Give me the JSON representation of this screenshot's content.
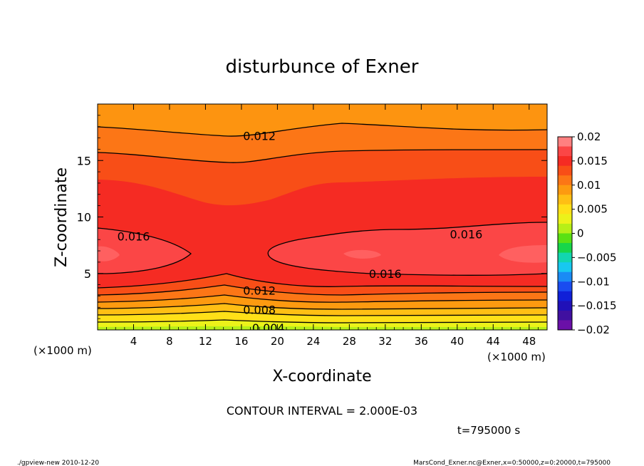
{
  "chart_data": {
    "type": "heatmap",
    "title": "disturbunce of Exner",
    "xlabel": "X-coordinate",
    "ylabel": "Z-coordinate",
    "x_unit": "(×1000 m)",
    "y_unit": "(×1000 m)",
    "xlim": [
      0,
      50
    ],
    "ylim": [
      0,
      20
    ],
    "x_ticks": [
      4,
      8,
      12,
      16,
      20,
      24,
      28,
      32,
      36,
      40,
      44,
      48
    ],
    "y_ticks": [
      5,
      10,
      15
    ],
    "colorbar": {
      "ticks": [
        "0.02",
        "0.015",
        "0.01",
        "0.005",
        "0",
        "−0.005",
        "−0.01",
        "−0.015",
        "−0.02"
      ],
      "range": [
        -0.02,
        0.02
      ]
    },
    "contour_interval_label": "CONTOUR INTERVAL = 2.000E-03",
    "contour_labels": [
      {
        "text": "0.012",
        "x": 18,
        "z": 17.2
      },
      {
        "text": "0.016",
        "x": 4,
        "z": 8.3
      },
      {
        "text": "0.016",
        "x": 41,
        "z": 8.5
      },
      {
        "text": "0.016",
        "x": 32,
        "z": 5.0
      },
      {
        "text": "0.012",
        "x": 18,
        "z": 3.5
      },
      {
        "text": "0.008",
        "x": 18,
        "z": 1.8
      },
      {
        "text": "0.004",
        "x": 19,
        "z": 0.2
      }
    ],
    "time_label": "t=795000 s"
  },
  "footer": {
    "left": "./gpview-new  2010-12-20",
    "right": "MarsCond_Exner.nc@Exner,x=0:50000,z=0:20000,t=795000"
  },
  "colors": {
    "c020": "#ff6060",
    "c018": "#fb4646",
    "c016": "#f52b23",
    "c014": "#f84e17",
    "c012": "#fc7616",
    "c010": "#fd9a10",
    "c008": "#ffbf14",
    "c006": "#ffe018",
    "c004": "#ecf21a",
    "c002": "#b6ef17",
    "c000": "#5ae113"
  }
}
